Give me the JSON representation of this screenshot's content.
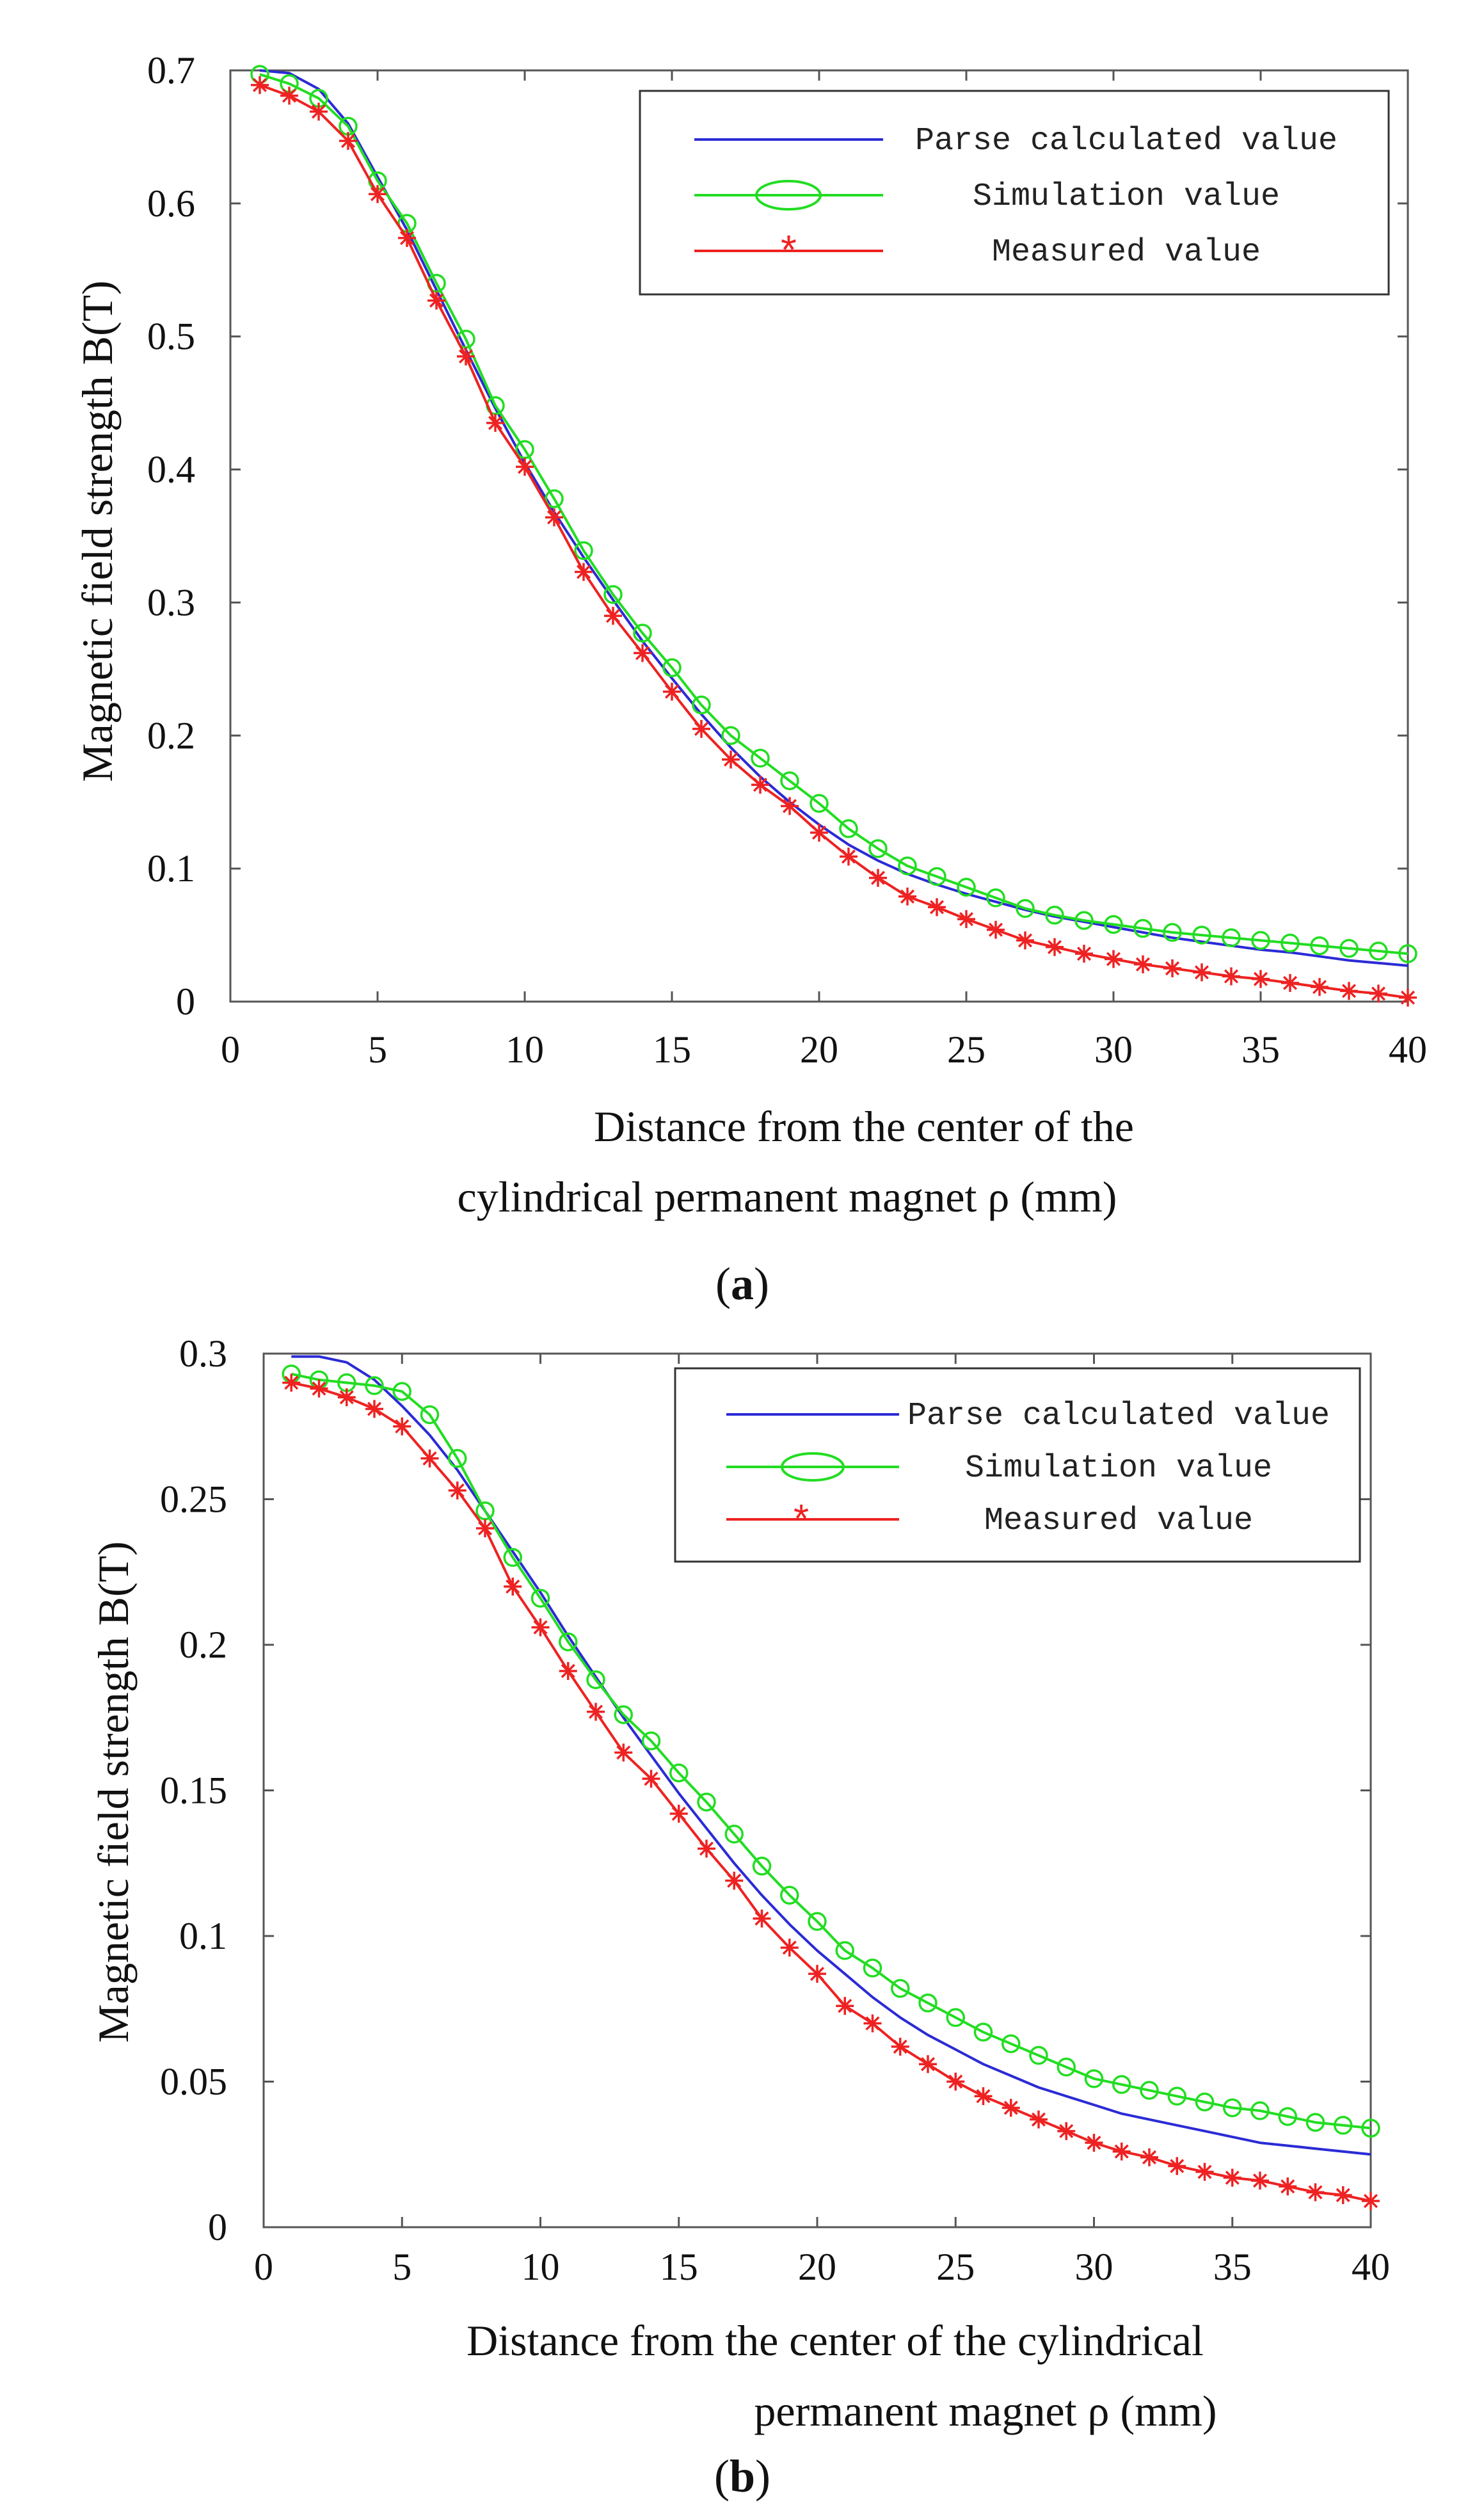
{
  "colors": {
    "analytic": "#2b2bd6",
    "simulation": "#22dd22",
    "measured": "#ee2222",
    "axis": "#555555"
  },
  "chart_data": [
    {
      "type": "line",
      "panel_label": "a",
      "xlabel_lines": [
        "Distance from the center of the",
        "cylindrical permanent magnet  ρ (mm)"
      ],
      "ylabel": "Magnetic field strength B(T)",
      "xlim": [
        0,
        40
      ],
      "ylim": [
        0,
        0.7
      ],
      "xticks": [
        0,
        5,
        10,
        15,
        20,
        25,
        30,
        35,
        40
      ],
      "yticks": [
        0,
        0.1,
        0.2,
        0.3,
        0.4,
        0.5,
        0.6,
        0.7
      ],
      "legend_position": "top-right",
      "x": [
        1,
        2,
        3,
        4,
        5,
        6,
        7,
        8,
        9,
        10,
        11,
        12,
        13,
        14,
        15,
        16,
        17,
        18,
        19,
        20,
        21,
        22,
        23,
        24,
        25,
        26,
        27,
        28,
        29,
        30,
        31,
        32,
        33,
        34,
        35,
        36,
        37,
        38,
        39,
        40
      ],
      "series": [
        {
          "name": "Parse calculated value",
          "style": "line",
          "values": [
            0.7,
            0.698,
            0.686,
            0.66,
            0.62,
            0.58,
            0.535,
            0.49,
            0.446,
            0.405,
            0.368,
            0.334,
            0.302,
            0.271,
            0.243,
            0.216,
            0.191,
            0.169,
            0.15,
            0.133,
            0.118,
            0.106,
            0.096,
            0.088,
            0.081,
            0.075,
            0.069,
            0.064,
            0.06,
            0.056,
            0.052,
            0.048,
            0.045,
            0.042,
            0.039,
            0.037,
            0.034,
            0.031,
            0.029,
            0.027
          ]
        },
        {
          "name": "Simulation value",
          "style": "circle",
          "values": [
            0.697,
            0.69,
            0.679,
            0.658,
            0.617,
            0.585,
            0.54,
            0.498,
            0.448,
            0.415,
            0.378,
            0.339,
            0.306,
            0.277,
            0.251,
            0.223,
            0.2,
            0.183,
            0.166,
            0.149,
            0.13,
            0.115,
            0.102,
            0.094,
            0.086,
            0.078,
            0.07,
            0.065,
            0.061,
            0.058,
            0.055,
            0.052,
            0.05,
            0.048,
            0.046,
            0.044,
            0.042,
            0.04,
            0.038,
            0.036
          ]
        },
        {
          "name": "Measured value",
          "style": "asterisk",
          "values": [
            0.689,
            0.681,
            0.669,
            0.647,
            0.607,
            0.574,
            0.527,
            0.485,
            0.435,
            0.402,
            0.364,
            0.323,
            0.29,
            0.262,
            0.233,
            0.205,
            0.182,
            0.163,
            0.147,
            0.127,
            0.109,
            0.093,
            0.079,
            0.071,
            0.062,
            0.054,
            0.046,
            0.041,
            0.036,
            0.032,
            0.028,
            0.025,
            0.022,
            0.019,
            0.017,
            0.014,
            0.011,
            0.008,
            0.006,
            0.003
          ]
        }
      ]
    },
    {
      "type": "line",
      "panel_label": "b",
      "xlabel_lines": [
        "Distance from the center of the cylindrical",
        "permanent magnet ρ (mm)"
      ],
      "ylabel": "Magnetic field strength B(T)",
      "xlim": [
        0,
        40
      ],
      "ylim": [
        0,
        0.3
      ],
      "xticks": [
        0,
        5,
        10,
        15,
        20,
        25,
        30,
        35,
        40
      ],
      "yticks": [
        0,
        0.05,
        0.1,
        0.15,
        0.2,
        0.25,
        0.3
      ],
      "legend_position": "top-right",
      "x": [
        1,
        2,
        3,
        4,
        5,
        6,
        7,
        8,
        9,
        10,
        11,
        12,
        13,
        14,
        15,
        16,
        17,
        18,
        19,
        20,
        21,
        22,
        23,
        24,
        25,
        26,
        27,
        28,
        29,
        30,
        31,
        32,
        33,
        34,
        35,
        36,
        37,
        38,
        39,
        40
      ],
      "series": [
        {
          "name": "Parse calculated value",
          "style": "line",
          "values": [
            0.299,
            0.299,
            0.297,
            0.291,
            0.282,
            0.272,
            0.26,
            0.246,
            0.232,
            0.218,
            0.203,
            0.189,
            0.175,
            0.162,
            0.149,
            0.137,
            0.125,
            0.114,
            0.104,
            0.095,
            0.087,
            0.079,
            0.072,
            0.066,
            0.061,
            0.056,
            0.052,
            0.048,
            0.045,
            0.042,
            0.039,
            0.037,
            0.035,
            0.033,
            0.031,
            0.029,
            0.028,
            0.027,
            0.026,
            0.025
          ]
        },
        {
          "name": "Simulation value",
          "style": "circle",
          "values": [
            0.293,
            0.291,
            0.29,
            0.289,
            0.287,
            0.279,
            0.264,
            0.246,
            0.23,
            0.216,
            0.201,
            0.188,
            0.176,
            0.167,
            0.156,
            0.146,
            0.135,
            0.124,
            0.114,
            0.105,
            0.095,
            0.089,
            0.082,
            0.077,
            0.072,
            0.067,
            0.063,
            0.059,
            0.055,
            0.051,
            0.049,
            0.047,
            0.045,
            0.043,
            0.041,
            0.04,
            0.038,
            0.036,
            0.035,
            0.034
          ]
        },
        {
          "name": "Measured value",
          "style": "asterisk",
          "values": [
            0.29,
            0.288,
            0.285,
            0.281,
            0.275,
            0.264,
            0.253,
            0.24,
            0.22,
            0.206,
            0.191,
            0.177,
            0.163,
            0.154,
            0.142,
            0.13,
            0.119,
            0.106,
            0.096,
            0.087,
            0.076,
            0.07,
            0.062,
            0.056,
            0.05,
            0.045,
            0.041,
            0.037,
            0.033,
            0.029,
            0.026,
            0.024,
            0.021,
            0.019,
            0.017,
            0.016,
            0.014,
            0.012,
            0.011,
            0.009
          ]
        }
      ]
    }
  ]
}
